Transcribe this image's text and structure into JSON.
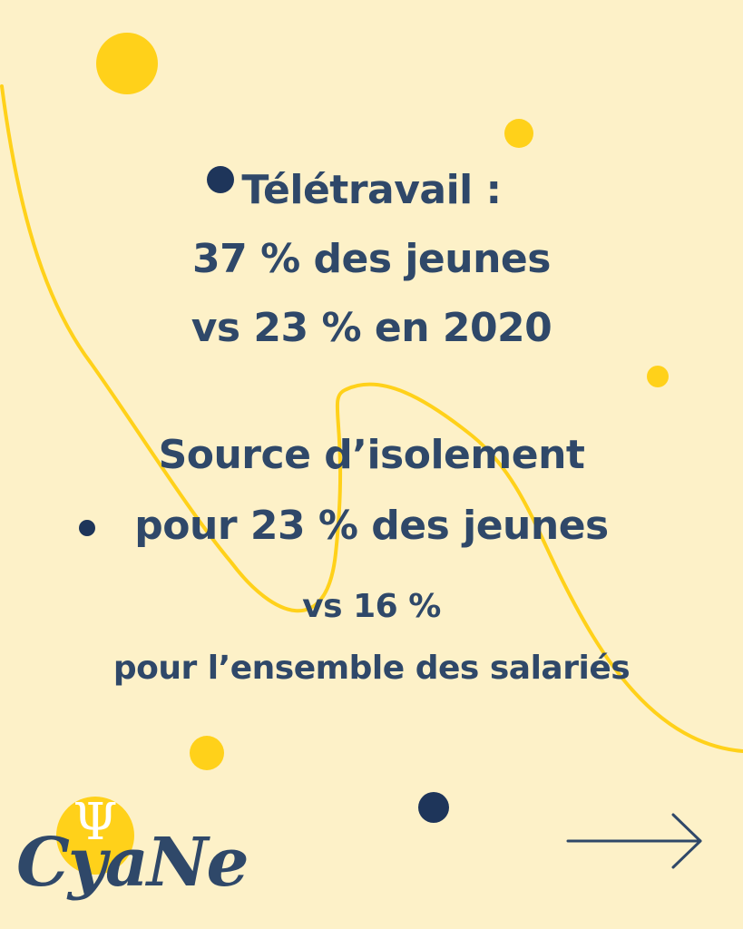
{
  "slide": {
    "line1": "Télétravail :",
    "line2": "37 % des jeunes",
    "line3": "vs 23 % en 2020",
    "line4": "Source d’isolement",
    "line5": "pour 23 % des jeunes",
    "line6": "vs 16 %",
    "line7": "pour l’ensemble des salariés"
  },
  "logo": {
    "text": "CyaNe",
    "symbol": "Ψ"
  },
  "navigation": {
    "next_icon": "arrow-right-icon"
  },
  "colors": {
    "background": "#FDF1C8",
    "text": "#2F4869",
    "accent_yellow": "#FFD11A",
    "dot_navy": "#1E355A"
  }
}
